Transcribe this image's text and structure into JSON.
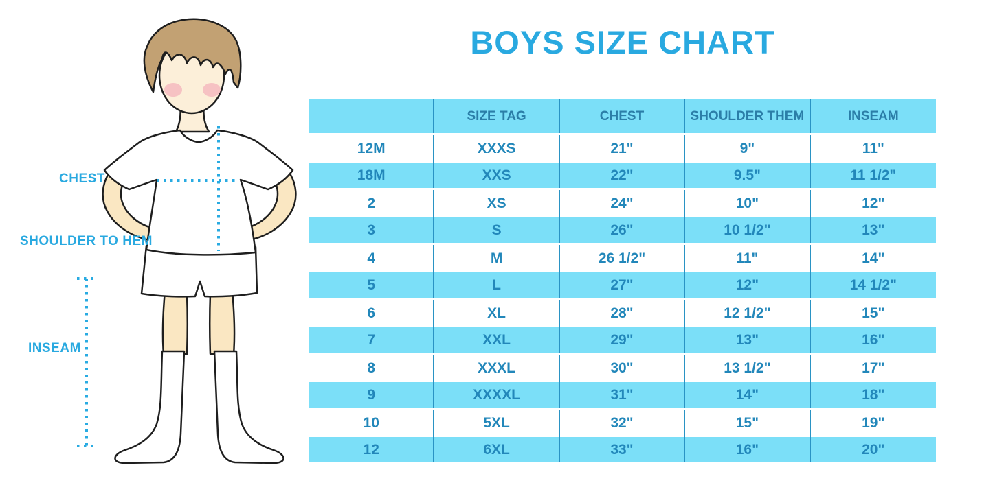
{
  "title": "BOYS SIZE CHART",
  "colors": {
    "title_blue": "#29A9E0",
    "row_blue": "#7BDFF8",
    "cell_text": "#2287BA",
    "header_text": "#2B7EA8",
    "divider": "#2A93C4",
    "dotted_line": "#29ABE2",
    "skin": "#FAE7C2",
    "face": "#FCEFD9",
    "hair": "#C2A173",
    "blush": "#F2A4B4",
    "outline": "#1E1E1E"
  },
  "figure": {
    "labels": {
      "chest": "CHEST",
      "shoulder_to_hem": "SHOULDER TO HEM",
      "inseam": "INSEAM"
    }
  },
  "chart_data": {
    "type": "table",
    "title": "BOYS SIZE CHART",
    "columns": [
      "",
      "SIZE TAG",
      "CHEST",
      "SHOULDER THEM",
      "INSEAM"
    ],
    "rows": [
      [
        "12M",
        "XXXS",
        "21\"",
        "9\"",
        "11\""
      ],
      [
        "18M",
        "XXS",
        "22\"",
        "9.5\"",
        "11 1/2\""
      ],
      [
        "2",
        "XS",
        "24\"",
        "10\"",
        "12\""
      ],
      [
        "3",
        "S",
        "26\"",
        "10 1/2\"",
        "13\""
      ],
      [
        "4",
        "M",
        "26 1/2\"",
        "11\"",
        "14\""
      ],
      [
        "5",
        "L",
        "27\"",
        "12\"",
        "14 1/2\""
      ],
      [
        "6",
        "XL",
        "28\"",
        "12 1/2\"",
        "15\""
      ],
      [
        "7",
        "XXL",
        "29\"",
        "13\"",
        "16\""
      ],
      [
        "8",
        "XXXL",
        "30\"",
        "13 1/2\"",
        "17\""
      ],
      [
        "9",
        "XXXXL",
        "31\"",
        "14\"",
        "18\""
      ],
      [
        "10",
        "5XL",
        "32\"",
        "15\"",
        "19\""
      ],
      [
        "12",
        "6XL",
        "33\"",
        "16\"",
        "20\""
      ]
    ]
  }
}
